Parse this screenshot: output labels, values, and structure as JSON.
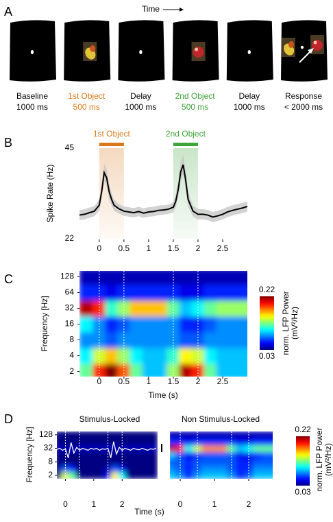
{
  "trial_diagram": {
    "letter": "A",
    "time_label": "Time",
    "epochs": [
      {
        "name": "Baseline",
        "duration": "1000 ms",
        "color": "#000000"
      },
      {
        "name": "1st Object",
        "duration": "500 ms",
        "color": "#d9791c"
      },
      {
        "name": "Delay",
        "duration": "1000 ms",
        "color": "#000000"
      },
      {
        "name": "2nd Object",
        "duration": "500 ms",
        "color": "#3ea33a"
      },
      {
        "name": "Delay",
        "duration": "1000 ms",
        "color": "#000000"
      },
      {
        "name": "Response",
        "duration": "< 2000 ms",
        "color": "#000000"
      }
    ]
  },
  "chart_data": [
    {
      "type": "line",
      "letter": "B",
      "ylabel": "Spike Rate (Hz)",
      "xlim": [
        -0.4,
        3.0
      ],
      "ylim": [
        22,
        45
      ],
      "xticks": [
        0,
        0.5,
        1,
        1.5,
        2,
        2.5
      ],
      "yticks": [
        22,
        45
      ],
      "highlights": [
        {
          "label": "1st Object",
          "start": 0,
          "end": 0.5,
          "color": "#d9791c"
        },
        {
          "label": "2nd Object",
          "start": 1.5,
          "end": 2,
          "color": "#3ea33a"
        }
      ],
      "series": [
        {
          "color": "#000000",
          "band_color": "#c4c4c4",
          "x": [
            -0.4,
            -0.3,
            -0.2,
            -0.1,
            0,
            0.05,
            0.1,
            0.15,
            0.2,
            0.25,
            0.3,
            0.4,
            0.5,
            0.6,
            0.7,
            0.8,
            0.9,
            1.0,
            1.1,
            1.2,
            1.3,
            1.4,
            1.5,
            1.55,
            1.6,
            1.65,
            1.7,
            1.75,
            1.8,
            1.9,
            2.0,
            2.1,
            2.2,
            2.3,
            2.4,
            2.5,
            2.6,
            2.7,
            2.8,
            2.9,
            3.0
          ],
          "values": [
            28.0,
            28.2,
            28.6,
            29.0,
            30.5,
            34.0,
            38.8,
            37.5,
            34.0,
            32.0,
            30.5,
            29.6,
            29.0,
            28.8,
            28.6,
            28.9,
            28.5,
            28.8,
            28.9,
            29.2,
            29.3,
            29.5,
            30.0,
            31.5,
            34.5,
            39.0,
            40.8,
            37.0,
            32.0,
            29.0,
            28.2,
            28.2,
            28.0,
            27.5,
            27.8,
            28.2,
            28.8,
            29.2,
            29.5,
            29.8,
            30.2
          ],
          "error": [
            1.3,
            1.3,
            1.3,
            1.3,
            1.4,
            1.8,
            2.2,
            2.2,
            2.0,
            1.6,
            1.4,
            1.2,
            1.2,
            1.2,
            1.2,
            1.2,
            1.2,
            1.2,
            1.2,
            1.2,
            1.2,
            1.2,
            1.3,
            1.6,
            2.0,
            2.4,
            2.6,
            2.3,
            1.8,
            1.4,
            1.3,
            1.3,
            1.3,
            1.3,
            1.3,
            1.3,
            1.3,
            1.3,
            1.3,
            1.3,
            1.3
          ]
        }
      ]
    },
    {
      "type": "heatmap",
      "letter": "C",
      "xlabel": "Time (s)",
      "ylabel": "Frequency [Hz]",
      "xlim": [
        -0.4,
        3.0
      ],
      "ylim": [
        1.6,
        165
      ],
      "log_y": true,
      "xticks": [
        0,
        0.5,
        1,
        1.5,
        2,
        2.5
      ],
      "yticks": [
        2,
        4,
        8,
        16,
        32,
        64,
        128
      ],
      "x": [
        -0.25,
        0,
        0.25,
        0.5,
        0.75,
        1.0,
        1.25,
        1.5,
        1.75,
        2.0,
        2.25,
        2.5,
        2.75,
        3.0
      ],
      "y": [
        2,
        4,
        8,
        16,
        32,
        64,
        128
      ],
      "z": [
        [
          0.12,
          0.19,
          0.22,
          0.18,
          0.12,
          0.09,
          0.09,
          0.13,
          0.21,
          0.19,
          0.12,
          0.09,
          0.09,
          0.09
        ],
        [
          0.1,
          0.14,
          0.16,
          0.13,
          0.1,
          0.09,
          0.09,
          0.11,
          0.15,
          0.14,
          0.1,
          0.09,
          0.09,
          0.09
        ],
        [
          0.08,
          0.08,
          0.07,
          0.08,
          0.08,
          0.08,
          0.08,
          0.08,
          0.07,
          0.07,
          0.08,
          0.08,
          0.08,
          0.08
        ],
        [
          0.1,
          0.08,
          0.06,
          0.07,
          0.08,
          0.08,
          0.08,
          0.08,
          0.06,
          0.06,
          0.07,
          0.08,
          0.08,
          0.08
        ],
        [
          0.21,
          0.19,
          0.11,
          0.13,
          0.16,
          0.16,
          0.16,
          0.12,
          0.09,
          0.1,
          0.12,
          0.13,
          0.13,
          0.13
        ],
        [
          0.06,
          0.06,
          0.05,
          0.06,
          0.06,
          0.06,
          0.06,
          0.06,
          0.05,
          0.05,
          0.06,
          0.06,
          0.06,
          0.06
        ],
        [
          0.04,
          0.04,
          0.04,
          0.04,
          0.04,
          0.04,
          0.04,
          0.04,
          0.04,
          0.04,
          0.04,
          0.04,
          0.04,
          0.04
        ]
      ],
      "markers": [
        0,
        0.5,
        1.5,
        2
      ],
      "colormap": "jet",
      "clim": [
        0.03,
        0.22
      ],
      "cticks": [
        0.03,
        0.22
      ],
      "colorbar_label": "norm. LFP Power",
      "colorbar_unit": "(mV²/Hz)"
    },
    {
      "type": "heatmap",
      "letter": "D",
      "title": "Stimulus-Locked",
      "xlabel": "Time (s)",
      "ylabel": "Frequency [Hz]",
      "xlim": [
        -0.3,
        3.25
      ],
      "ylim": [
        1.4,
        180
      ],
      "log_y": true,
      "xticks": [
        0,
        1,
        2
      ],
      "yticks": [
        2,
        8,
        32,
        128
      ],
      "x": [
        -0.25,
        0,
        0.25,
        0.5,
        0.75,
        1.0,
        1.25,
        1.5,
        1.75,
        2.0,
        2.25,
        2.5,
        2.75,
        3.0
      ],
      "y": [
        2,
        4,
        8,
        16,
        32,
        64,
        128
      ],
      "z": [
        [
          0.03,
          0.14,
          0.12,
          0.03,
          0.03,
          0.03,
          0.03,
          0.05,
          0.15,
          0.1,
          0.03,
          0.03,
          0.03,
          0.03
        ],
        [
          0.03,
          0.07,
          0.06,
          0.03,
          0.03,
          0.03,
          0.03,
          0.04,
          0.07,
          0.05,
          0.03,
          0.03,
          0.03,
          0.03
        ],
        [
          0.03,
          0.03,
          0.03,
          0.03,
          0.03,
          0.03,
          0.03,
          0.03,
          0.03,
          0.03,
          0.03,
          0.03,
          0.03,
          0.03
        ],
        [
          0.03,
          0.03,
          0.03,
          0.03,
          0.03,
          0.03,
          0.03,
          0.03,
          0.03,
          0.03,
          0.03,
          0.03,
          0.03,
          0.03
        ],
        [
          0.04,
          0.04,
          0.04,
          0.04,
          0.04,
          0.04,
          0.04,
          0.04,
          0.04,
          0.04,
          0.04,
          0.04,
          0.04,
          0.04
        ],
        [
          0.03,
          0.03,
          0.03,
          0.03,
          0.03,
          0.03,
          0.03,
          0.03,
          0.03,
          0.03,
          0.03,
          0.03,
          0.03,
          0.03
        ],
        [
          0.03,
          0.03,
          0.03,
          0.03,
          0.03,
          0.03,
          0.03,
          0.03,
          0.03,
          0.03,
          0.03,
          0.03,
          0.03,
          0.03
        ]
      ],
      "markers": [
        0,
        0.5,
        1.5,
        2
      ],
      "colormap": "jet",
      "clim": [
        0.03,
        0.22
      ],
      "trace": {
        "color": "#ffffff",
        "x": [
          -0.3,
          -0.2,
          -0.1,
          0,
          0.1,
          0.2,
          0.3,
          0.4,
          0.5,
          0.6,
          0.7,
          0.8,
          0.9,
          1.0,
          1.1,
          1.2,
          1.3,
          1.4,
          1.5,
          1.6,
          1.7,
          1.8,
          1.9,
          2.0,
          2.1,
          2.2,
          2.3,
          2.4,
          2.5,
          2.6,
          2.7,
          2.8,
          2.9,
          3.0,
          3.1,
          3.2
        ],
        "values": [
          0,
          0.1,
          -0.1,
          0.05,
          -0.9,
          0.7,
          -0.4,
          0.2,
          -0.1,
          0.1,
          0,
          -0.1,
          0.1,
          0,
          0.1,
          -0.1,
          0.05,
          0,
          0.1,
          -0.9,
          0.8,
          -0.5,
          0.2,
          -0.1,
          0.1,
          0,
          -0.1,
          0.1,
          0,
          -0.05,
          0.1,
          0,
          -0.1,
          0.05,
          0,
          0.1
        ]
      }
    },
    {
      "type": "heatmap",
      "title": "Non Stimulus-Locked",
      "xlim": [
        -0.3,
        2.7
      ],
      "ylim": [
        1.4,
        180
      ],
      "log_y": true,
      "xticks": [
        0,
        1,
        2
      ],
      "x": [
        -0.25,
        0,
        0.25,
        0.5,
        0.75,
        1.0,
        1.25,
        1.5,
        1.75,
        2.0,
        2.25,
        2.5,
        2.75,
        3.0
      ],
      "y": [
        2,
        4,
        8,
        16,
        32,
        64,
        128
      ],
      "z": [
        [
          0.09,
          0.08,
          0.06,
          0.08,
          0.09,
          0.09,
          0.09,
          0.08,
          0.06,
          0.07,
          0.09,
          0.09,
          0.09,
          0.09
        ],
        [
          0.08,
          0.07,
          0.06,
          0.07,
          0.08,
          0.08,
          0.08,
          0.07,
          0.06,
          0.06,
          0.08,
          0.08,
          0.08,
          0.08
        ],
        [
          0.07,
          0.07,
          0.06,
          0.07,
          0.07,
          0.07,
          0.07,
          0.07,
          0.06,
          0.06,
          0.07,
          0.07,
          0.07,
          0.07
        ],
        [
          0.09,
          0.07,
          0.05,
          0.06,
          0.07,
          0.07,
          0.07,
          0.07,
          0.05,
          0.05,
          0.06,
          0.07,
          0.07,
          0.07
        ],
        [
          0.21,
          0.19,
          0.1,
          0.14,
          0.17,
          0.17,
          0.17,
          0.12,
          0.09,
          0.1,
          0.12,
          0.12,
          0.12,
          0.12
        ],
        [
          0.06,
          0.06,
          0.05,
          0.06,
          0.06,
          0.06,
          0.06,
          0.06,
          0.05,
          0.05,
          0.06,
          0.06,
          0.06,
          0.06
        ],
        [
          0.04,
          0.04,
          0.04,
          0.04,
          0.04,
          0.04,
          0.04,
          0.04,
          0.04,
          0.04,
          0.04,
          0.04,
          0.04,
          0.04
        ]
      ],
      "markers": [
        0,
        0.5,
        1.5,
        2
      ],
      "colormap": "jet",
      "clim": [
        0.03,
        0.22
      ],
      "cticks": [
        0.03,
        0.22
      ],
      "colorbar_label": "norm. LFP Power",
      "colorbar_unit": "(mV²/Hz)"
    }
  ]
}
